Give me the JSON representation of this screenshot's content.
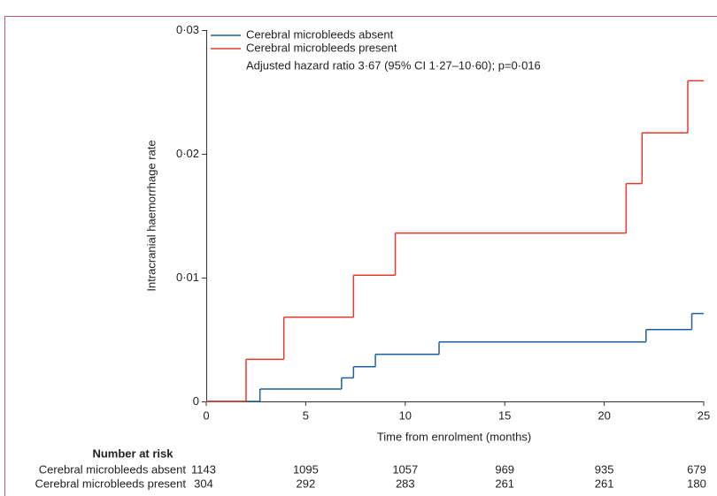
{
  "chart_data": {
    "type": "step",
    "xlabel": "Time from enrolment (months)",
    "ylabel": "Intracranial haemorrhage rate",
    "xlim": [
      0,
      25
    ],
    "ylim": [
      0,
      0.03
    ],
    "xticks": [
      0,
      5,
      10,
      15,
      20,
      25
    ],
    "yticks": [
      0,
      {
        "value": 0.01,
        "label": "0·01"
      },
      {
        "value": 0.02,
        "label": "0·02"
      },
      {
        "value": 0.03,
        "label": "0·03"
      }
    ],
    "series": [
      {
        "name": "Cerebral microbleeds absent",
        "color": "#1f5f9e",
        "x": [
          0,
          2.7,
          6.8,
          7.4,
          8.5,
          11.7,
          22.1,
          24.4
        ],
        "values": [
          0,
          0.001,
          0.0019,
          0.0028,
          0.0038,
          0.0048,
          0.0058,
          0.0071
        ]
      },
      {
        "name": "Cerebral microbleeds present",
        "color": "#e03a2f",
        "x": [
          0,
          2.0,
          3.9,
          7.4,
          9.5,
          21.1,
          21.9,
          24.2
        ],
        "values": [
          0,
          0.0034,
          0.0068,
          0.0102,
          0.0136,
          0.0176,
          0.0217,
          0.0259
        ]
      }
    ],
    "annotation": "Adjusted hazard ratio 3·67 (95% CI 1·27–10·60); p=0·016",
    "risk_table": {
      "title": "Number at risk",
      "rows": [
        {
          "name": "Cerebral microbleeds absent",
          "values": [
            1143,
            1095,
            1057,
            969,
            935,
            679
          ]
        },
        {
          "name": "Cerebral microbleeds present",
          "values": [
            304,
            292,
            283,
            261,
            261,
            180
          ]
        }
      ]
    }
  }
}
